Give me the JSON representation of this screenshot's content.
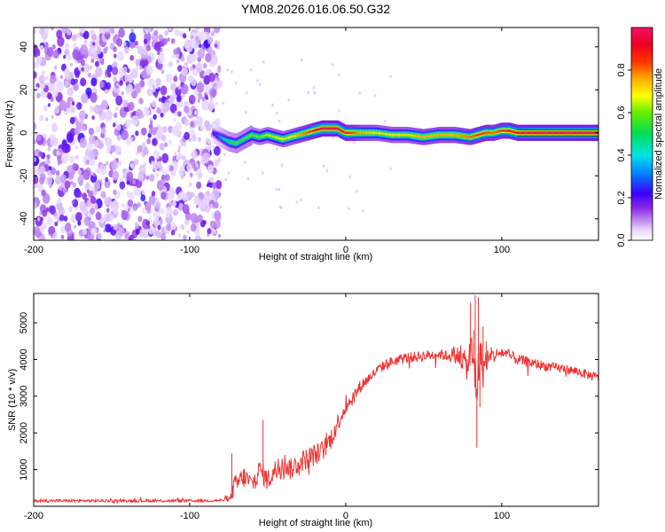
{
  "figure": {
    "title": "YM08.2026.016.06.50.G32"
  },
  "chart_data": [
    {
      "type": "heatmap",
      "xlabel": "Height of straight line (km)",
      "ylabel": "Frequency (Hz)",
      "xlim": [
        -200,
        162
      ],
      "ylim": [
        -50,
        49
      ],
      "x_ticks": [
        "-200",
        "-100",
        "0",
        "100"
      ],
      "x_tick_values": [
        -200,
        -100,
        0,
        100
      ],
      "y_ticks": [
        "-40",
        "-20",
        "0",
        "20",
        "40"
      ],
      "y_tick_values": [
        -40,
        -20,
        0,
        20,
        40
      ],
      "noise_region_x": [
        -200,
        -83
      ],
      "ridge": {
        "x": [
          -85,
          -80,
          -75,
          -70,
          -65,
          -60,
          -55,
          -50,
          -45,
          -40,
          -35,
          -30,
          -25,
          -20,
          -15,
          -10,
          -5,
          0,
          10,
          20,
          30,
          40,
          50,
          60,
          70,
          80,
          85,
          90,
          95,
          100,
          105,
          110,
          120,
          140,
          162
        ],
        "freq": [
          0,
          -2,
          -4,
          -5,
          -3,
          -1,
          -2,
          -1,
          -2,
          -3,
          -2,
          -1,
          0,
          1,
          2,
          2,
          2,
          0,
          0,
          0,
          -1,
          -1,
          -2,
          -1,
          -1,
          -2,
          -1,
          0,
          0,
          1,
          1,
          0,
          0,
          0,
          0
        ],
        "amplitude": [
          0.2,
          0.35,
          0.5,
          0.55,
          0.55,
          0.6,
          0.6,
          0.65,
          0.65,
          0.7,
          0.7,
          0.75,
          0.8,
          0.9,
          0.95,
          0.95,
          0.95,
          0.9,
          0.75,
          0.7,
          0.7,
          0.7,
          0.75,
          0.75,
          0.75,
          0.8,
          0.85,
          0.85,
          0.8,
          0.85,
          0.9,
          0.9,
          0.95,
          0.95,
          0.95
        ]
      },
      "colorbar": {
        "label": "Normalized spectral amplitude",
        "range": [
          0,
          1
        ],
        "ticks": [
          "0.0",
          "0.2",
          "0.4",
          "0.6",
          "0.8"
        ],
        "tick_values": [
          0.0,
          0.2,
          0.4,
          0.6,
          0.8
        ]
      }
    },
    {
      "type": "line",
      "xlabel": "Height of straight line (km)",
      "ylabel": "SNR (10 * v/v)",
      "xlim": [
        -200,
        162
      ],
      "ylim": [
        0,
        5800
      ],
      "x_ticks": [
        "-200",
        "-100",
        "0",
        "100"
      ],
      "x_tick_values": [
        -200,
        -100,
        0,
        100
      ],
      "y_ticks": [
        "1000",
        "2000",
        "3000",
        "4000",
        "5000"
      ],
      "y_tick_values": [
        1000,
        2000,
        3000,
        4000,
        5000
      ],
      "series": [
        {
          "name": "SNR",
          "color": "#ee3333",
          "x": [
            -200,
            -150,
            -100,
            -80,
            -74,
            -72,
            -68,
            -65,
            -60,
            -55,
            -50,
            -45,
            -40,
            -35,
            -30,
            -25,
            -20,
            -15,
            -10,
            -5,
            0,
            5,
            10,
            15,
            20,
            25,
            30,
            40,
            50,
            60,
            65,
            70,
            75,
            78,
            80,
            82,
            84,
            86,
            88,
            90,
            95,
            100,
            110,
            120,
            130,
            140,
            150,
            162
          ],
          "y": [
            150,
            150,
            150,
            160,
            200,
            500,
            700,
            800,
            600,
            1000,
            700,
            1000,
            1200,
            1000,
            1200,
            1300,
            1400,
            1500,
            1800,
            2300,
            2700,
            3000,
            3300,
            3500,
            3700,
            3850,
            3950,
            4050,
            4100,
            4150,
            4100,
            4150,
            4000,
            3800,
            4200,
            3900,
            3200,
            4200,
            3700,
            4000,
            4100,
            4200,
            4000,
            3900,
            3800,
            3750,
            3650,
            3500
          ],
          "jitter": [
            40,
            40,
            40,
            40,
            60,
            300,
            300,
            300,
            250,
            300,
            300,
            300,
            300,
            300,
            300,
            300,
            300,
            300,
            300,
            250,
            200,
            200,
            180,
            150,
            150,
            150,
            150,
            150,
            150,
            150,
            150,
            250,
            300,
            400,
            600,
            700,
            700,
            600,
            500,
            350,
            200,
            180,
            150,
            150,
            130,
            130,
            130,
            130
          ],
          "spikes": [
            {
              "x": -73,
              "y": 1450
            },
            {
              "x": -53,
              "y": 2350
            },
            {
              "x": 80,
              "y": 5550
            },
            {
              "x": 82,
              "y": 4800
            },
            {
              "x": 83,
              "y": 5750
            },
            {
              "x": 84,
              "y": 1600
            },
            {
              "x": 85,
              "y": 5700
            },
            {
              "x": 86,
              "y": 2700
            },
            {
              "x": 88,
              "y": 4900
            },
            {
              "x": 90,
              "y": 4500
            }
          ]
        }
      ]
    }
  ]
}
